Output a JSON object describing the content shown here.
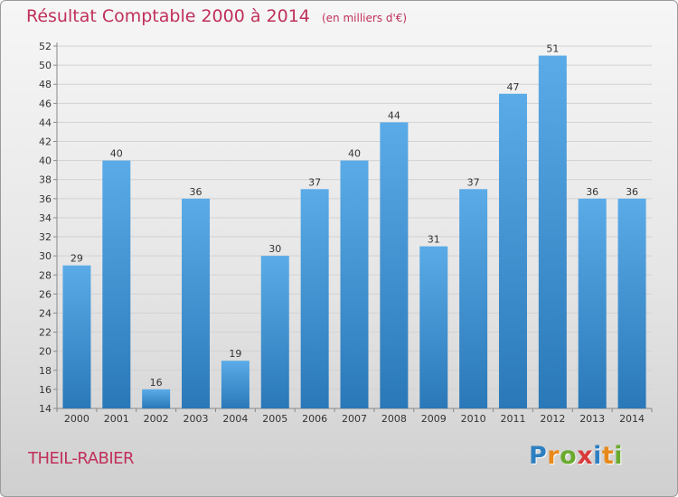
{
  "page": {
    "title": "Résultat Comptable 2000 à 2014",
    "unit": "(en milliers d'€)",
    "location": "THEIL-RABIER",
    "logo": "Proxiti"
  },
  "logo_letters": [
    {
      "char": "P",
      "color": "#2e7fc1"
    },
    {
      "char": "r",
      "color": "#e8891a"
    },
    {
      "char": "o",
      "color": "#6aab2e"
    },
    {
      "char": "x",
      "color": "#d93a3a"
    },
    {
      "char": "i",
      "color": "#2e7fc1"
    },
    {
      "char": "t",
      "color": "#e8891a"
    },
    {
      "char": "i",
      "color": "#6aab2e"
    }
  ],
  "colors": {
    "bar_top": "#5aabe8",
    "bar_bottom": "#2a78b8",
    "title": "#c0305a"
  },
  "chart_data": {
    "type": "bar",
    "title": "Résultat Comptable 2000 à 2014",
    "subtitle": "(en milliers d'€)",
    "xlabel": "",
    "ylabel": "",
    "categories": [
      "2000",
      "2001",
      "2002",
      "2003",
      "2004",
      "2005",
      "2006",
      "2007",
      "2008",
      "2009",
      "2010",
      "2011",
      "2012",
      "2013",
      "2014"
    ],
    "values": [
      29,
      40,
      16,
      36,
      19,
      30,
      37,
      40,
      44,
      31,
      37,
      47,
      51,
      36,
      36
    ],
    "ylim": [
      14,
      52
    ],
    "yticks": [
      14,
      16,
      18,
      20,
      22,
      24,
      26,
      28,
      30,
      32,
      34,
      36,
      38,
      40,
      42,
      44,
      46,
      48,
      50,
      52
    ],
    "grid": true
  }
}
